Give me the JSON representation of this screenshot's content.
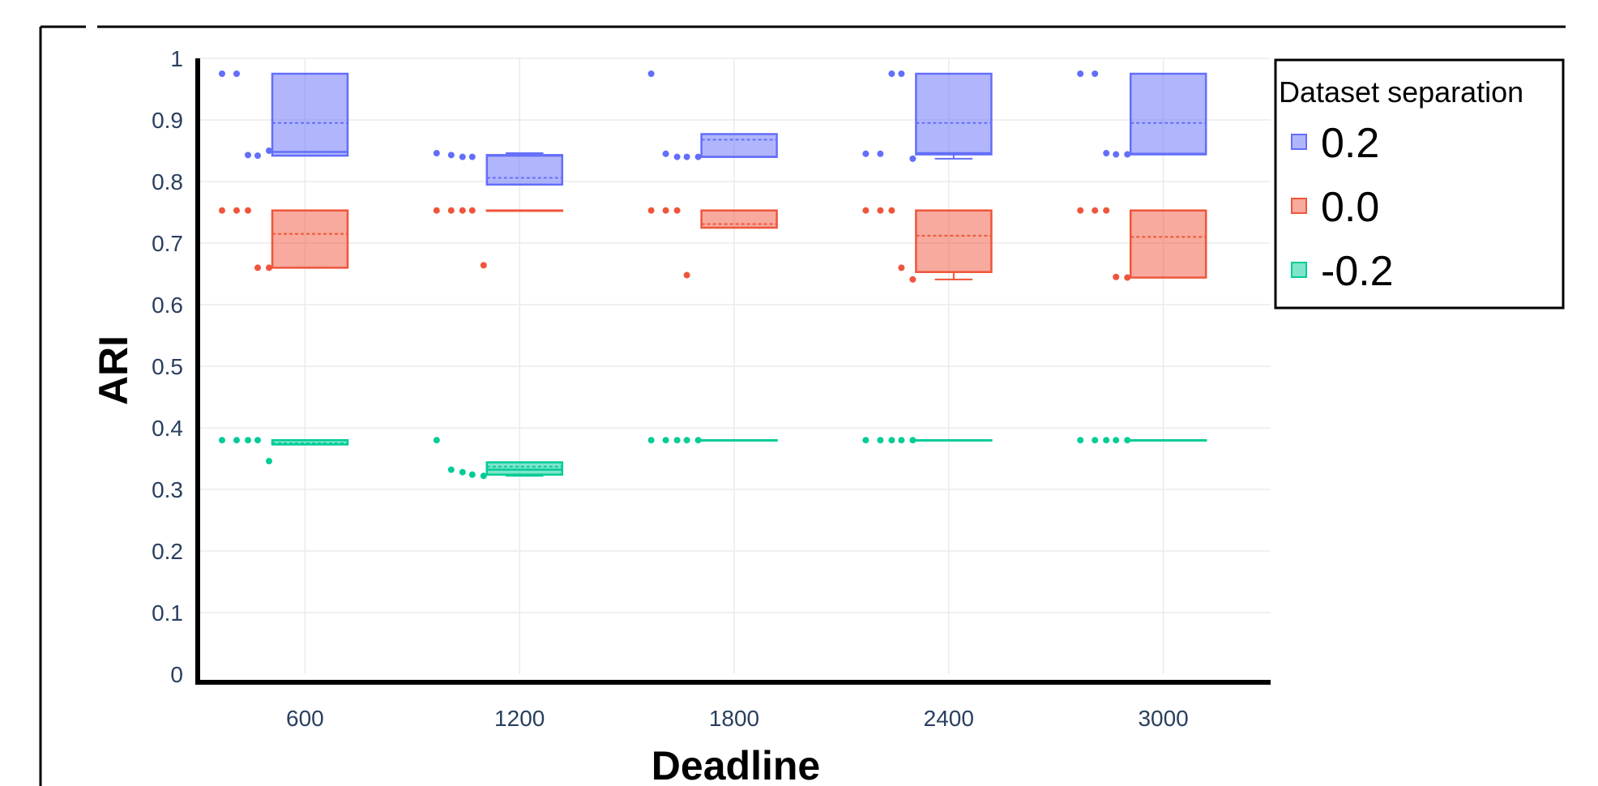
{
  "chart_data": {
    "type": "box",
    "title": "",
    "xlabel": "Deadline",
    "ylabel": "ARI",
    "ylim": [
      0,
      1
    ],
    "yticks": [
      "0",
      "0.1",
      "0.2",
      "0.3",
      "0.4",
      "0.5",
      "0.6",
      "0.7",
      "0.8",
      "0.9",
      "1"
    ],
    "categories": [
      "600",
      "1200",
      "1800",
      "2400",
      "3000"
    ],
    "grid": true,
    "legend": {
      "title": "Dataset separation",
      "position": "top-right"
    },
    "series": [
      {
        "name": "0.2",
        "color": "#636efa",
        "boxes": [
          {
            "q1": 0.842,
            "median": 0.848,
            "q3": 0.975,
            "lowerfence": 0.842,
            "upperfence": 0.975,
            "mean": 0.895,
            "points": [
              0.975,
              0.975,
              0.843,
              0.842,
              0.85
            ]
          },
          {
            "q1": 0.795,
            "median": 0.842,
            "q3": 0.843,
            "lowerfence": 0.795,
            "upperfence": 0.846,
            "mean": 0.806,
            "points": [
              0.846,
              0.843,
              0.84,
              0.84
            ]
          },
          {
            "q1": 0.84,
            "median": 0.84,
            "q3": 0.877,
            "lowerfence": 0.84,
            "upperfence": 0.877,
            "mean": 0.868,
            "points": [
              0.975,
              0.845,
              0.84,
              0.84,
              0.84
            ]
          },
          {
            "q1": 0.844,
            "median": 0.846,
            "q3": 0.975,
            "lowerfence": 0.837,
            "upperfence": 0.975,
            "mean": 0.895,
            "points": [
              0.845,
              0.845,
              0.975,
              0.975,
              0.837
            ]
          },
          {
            "q1": 0.844,
            "median": 0.845,
            "q3": 0.975,
            "lowerfence": 0.844,
            "upperfence": 0.975,
            "mean": 0.895,
            "points": [
              0.975,
              0.975,
              0.846,
              0.844,
              0.844
            ]
          }
        ]
      },
      {
        "name": "0.0",
        "color": "#ef553b",
        "boxes": [
          {
            "q1": 0.66,
            "median": 0.753,
            "q3": 0.753,
            "lowerfence": 0.66,
            "upperfence": 0.753,
            "mean": 0.715,
            "points": [
              0.753,
              0.753,
              0.753,
              0.66,
              0.66
            ]
          },
          {
            "q1": 0.753,
            "median": 0.753,
            "q3": 0.753,
            "lowerfence": 0.753,
            "upperfence": 0.753,
            "mean": 0.753,
            "points": [
              0.753,
              0.753,
              0.753,
              0.753,
              0.664
            ]
          },
          {
            "q1": 0.725,
            "median": 0.753,
            "q3": 0.753,
            "lowerfence": 0.725,
            "upperfence": 0.753,
            "mean": 0.731,
            "points": [
              0.753,
              0.753,
              0.753,
              0.648
            ]
          },
          {
            "q1": 0.653,
            "median": 0.753,
            "q3": 0.753,
            "lowerfence": 0.641,
            "upperfence": 0.753,
            "mean": 0.712,
            "points": [
              0.753,
              0.753,
              0.753,
              0.66,
              0.641
            ]
          },
          {
            "q1": 0.644,
            "median": 0.753,
            "q3": 0.753,
            "lowerfence": 0.644,
            "upperfence": 0.753,
            "mean": 0.71,
            "points": [
              0.753,
              0.753,
              0.753,
              0.645,
              0.644
            ]
          }
        ]
      },
      {
        "name": "-0.2",
        "color": "#00cc96",
        "boxes": [
          {
            "q1": 0.373,
            "median": 0.38,
            "q3": 0.38,
            "lowerfence": 0.373,
            "upperfence": 0.38,
            "mean": 0.375,
            "points": [
              0.38,
              0.38,
              0.38,
              0.38,
              0.346
            ]
          },
          {
            "q1": 0.324,
            "median": 0.332,
            "q3": 0.344,
            "lowerfence": 0.322,
            "upperfence": 0.344,
            "mean": 0.337,
            "points": [
              0.38,
              0.332,
              0.328,
              0.324,
              0.322
            ]
          },
          {
            "q1": 0.38,
            "median": 0.38,
            "q3": 0.38,
            "lowerfence": 0.38,
            "upperfence": 0.38,
            "mean": 0.38,
            "points": [
              0.38,
              0.38,
              0.38,
              0.38,
              0.38
            ]
          },
          {
            "q1": 0.38,
            "median": 0.38,
            "q3": 0.38,
            "lowerfence": 0.38,
            "upperfence": 0.38,
            "mean": 0.38,
            "points": [
              0.38,
              0.38,
              0.38,
              0.38,
              0.38
            ]
          },
          {
            "q1": 0.38,
            "median": 0.38,
            "q3": 0.38,
            "lowerfence": 0.38,
            "upperfence": 0.38,
            "mean": 0.38,
            "points": [
              0.38,
              0.38,
              0.38,
              0.38,
              0.38
            ]
          }
        ]
      }
    ]
  }
}
